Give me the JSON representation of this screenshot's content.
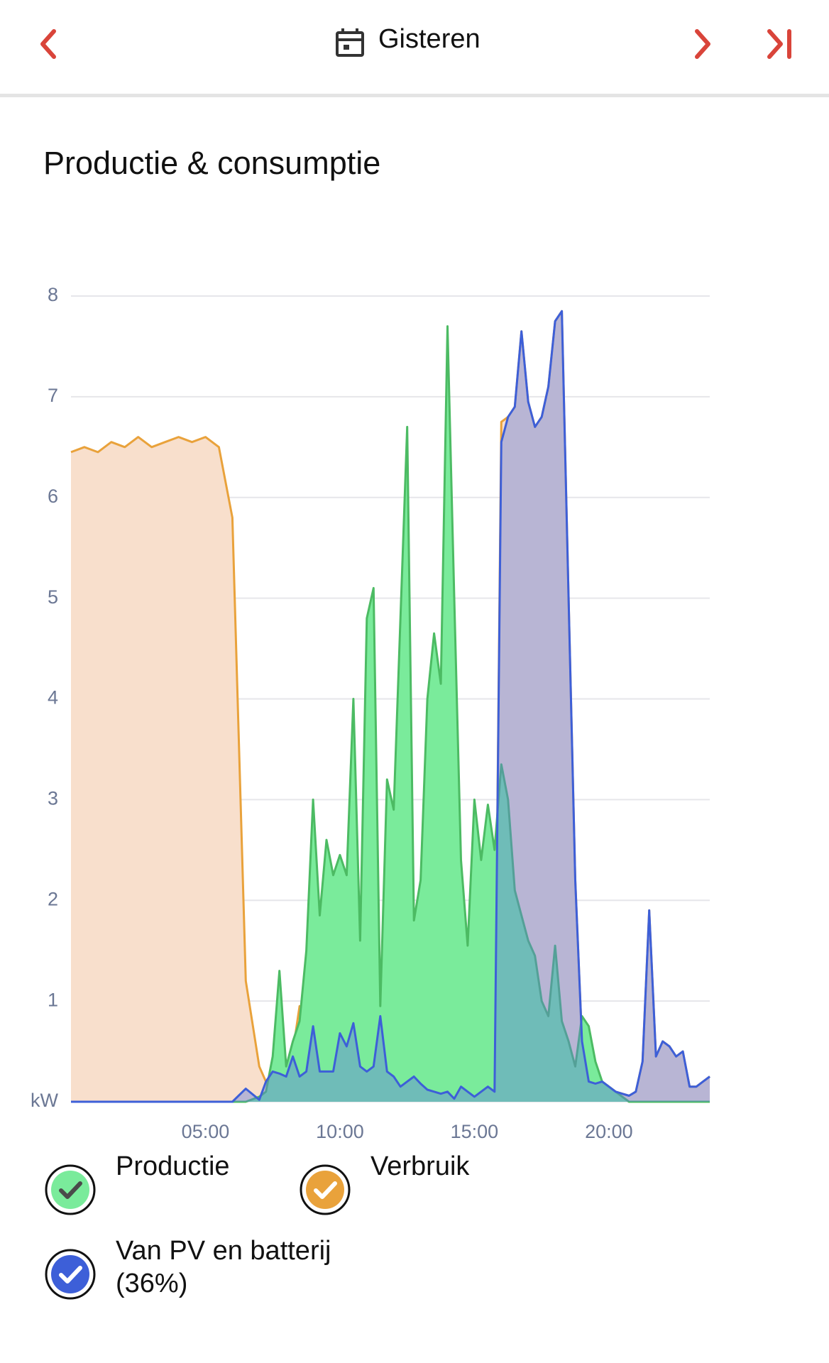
{
  "header": {
    "title": "Gisteren"
  },
  "chart_data": {
    "type": "area",
    "title": "Productie & consumptie",
    "x": [
      0,
      0.5,
      1,
      1.5,
      2,
      2.5,
      3,
      3.5,
      4,
      4.5,
      5,
      5.5,
      6,
      6.5,
      7,
      7.25,
      7.5,
      7.75,
      8,
      8.25,
      8.5,
      8.75,
      9,
      9.25,
      9.5,
      9.75,
      10,
      10.25,
      10.5,
      10.75,
      11,
      11.25,
      11.5,
      11.75,
      12,
      12.25,
      12.5,
      12.75,
      13,
      13.25,
      13.5,
      13.75,
      14,
      14.25,
      14.5,
      14.75,
      15,
      15.25,
      15.5,
      15.75,
      16,
      16.25,
      16.5,
      16.75,
      17,
      17.25,
      17.5,
      17.75,
      18,
      18.25,
      18.5,
      18.75,
      19,
      19.25,
      19.5,
      19.75,
      20,
      20.25,
      20.5,
      20.75,
      21,
      21.25,
      21.5,
      21.75,
      22,
      22.25,
      22.5,
      22.75,
      23,
      23.25,
      23.5,
      23.75
    ],
    "xlim": [
      0,
      23.75
    ],
    "xticks": [
      {
        "value": 5,
        "label": "05:00"
      },
      {
        "value": 10,
        "label": "10:00"
      },
      {
        "value": 15,
        "label": "15:00"
      },
      {
        "value": 20,
        "label": "20:00"
      }
    ],
    "ylim": [
      0,
      8
    ],
    "yticks": [
      {
        "value": 0,
        "label": "kW"
      },
      1,
      2,
      3,
      4,
      5,
      6,
      7,
      8
    ],
    "grid": true,
    "series": [
      {
        "name": "Productie",
        "color": "#4cbb63",
        "fill": "#7aeb9b",
        "values": [
          0,
          0,
          0,
          0,
          0,
          0,
          0,
          0,
          0,
          0,
          0,
          0,
          0,
          0,
          0.05,
          0.1,
          0.45,
          1.3,
          0.35,
          0.6,
          0.8,
          1.5,
          3.0,
          1.85,
          2.6,
          2.25,
          2.45,
          2.25,
          4.0,
          1.6,
          4.8,
          5.1,
          0.95,
          3.2,
          2.9,
          4.8,
          6.7,
          1.8,
          2.2,
          4.0,
          4.65,
          4.15,
          7.7,
          5.0,
          2.4,
          1.55,
          3.0,
          2.4,
          2.95,
          2.5,
          3.35,
          3.0,
          2.1,
          1.85,
          1.6,
          1.45,
          1.0,
          0.85,
          1.55,
          0.8,
          0.6,
          0.35,
          0.85,
          0.75,
          0.4,
          0.2,
          0.15,
          0.1,
          0.05,
          0,
          0,
          0,
          0,
          0,
          0,
          0,
          0,
          0,
          0,
          0,
          0,
          0
        ]
      },
      {
        "name": "Verbruik",
        "color": "#e9a23b",
        "fill": "#f8dfcc",
        "values": [
          6.45,
          6.5,
          6.45,
          6.55,
          6.5,
          6.6,
          6.5,
          6.55,
          6.6,
          6.55,
          6.6,
          6.5,
          5.8,
          1.2,
          0.35,
          0.2,
          0.3,
          0.3,
          0.3,
          0.5,
          0.95,
          0.75,
          0.75,
          0.3,
          0.3,
          0.3,
          0.68,
          0.55,
          0.78,
          0.4,
          0.35,
          0.35,
          0.85,
          0.3,
          0.25,
          0.15,
          0.2,
          0.25,
          0.18,
          0.12,
          0.1,
          0.15,
          0.1,
          0.1,
          0.15,
          0.1,
          0.05,
          0.1,
          0.15,
          0.1,
          6.75,
          6.8,
          6.9,
          7.65,
          6.95,
          6.7,
          6.8,
          7.1,
          7.75,
          7.85,
          5.0,
          2.2,
          0.6,
          0.2,
          0.18,
          0.2,
          0.15,
          0.1,
          0.08,
          0.06,
          0.1,
          0.4,
          1.9,
          0.45,
          0.6,
          0.55,
          0.45,
          0.5,
          0.15,
          0.15,
          0.2,
          0.25
        ]
      },
      {
        "name": "Van PV en batterij (36%)",
        "color": "#3d5fd8",
        "fill": "rgba(95,125,225,0.42)",
        "values": [
          0,
          0,
          0,
          0,
          0,
          0,
          0,
          0,
          0,
          0,
          0,
          0,
          0,
          0.13,
          0.02,
          0.2,
          0.3,
          0.28,
          0.25,
          0.45,
          0.25,
          0.3,
          0.75,
          0.3,
          0.3,
          0.3,
          0.68,
          0.55,
          0.78,
          0.35,
          0.3,
          0.35,
          0.85,
          0.3,
          0.25,
          0.15,
          0.2,
          0.25,
          0.18,
          0.12,
          0.1,
          0.08,
          0.1,
          0.03,
          0.15,
          0.1,
          0.05,
          0.1,
          0.15,
          0.1,
          6.55,
          6.8,
          6.9,
          7.65,
          6.95,
          6.7,
          6.8,
          7.1,
          7.75,
          7.85,
          5.0,
          2.2,
          0.6,
          0.2,
          0.18,
          0.2,
          0.15,
          0.1,
          0.08,
          0.06,
          0.1,
          0.4,
          1.9,
          0.45,
          0.6,
          0.55,
          0.45,
          0.5,
          0.15,
          0.15,
          0.2,
          0.25
        ]
      }
    ]
  }
}
